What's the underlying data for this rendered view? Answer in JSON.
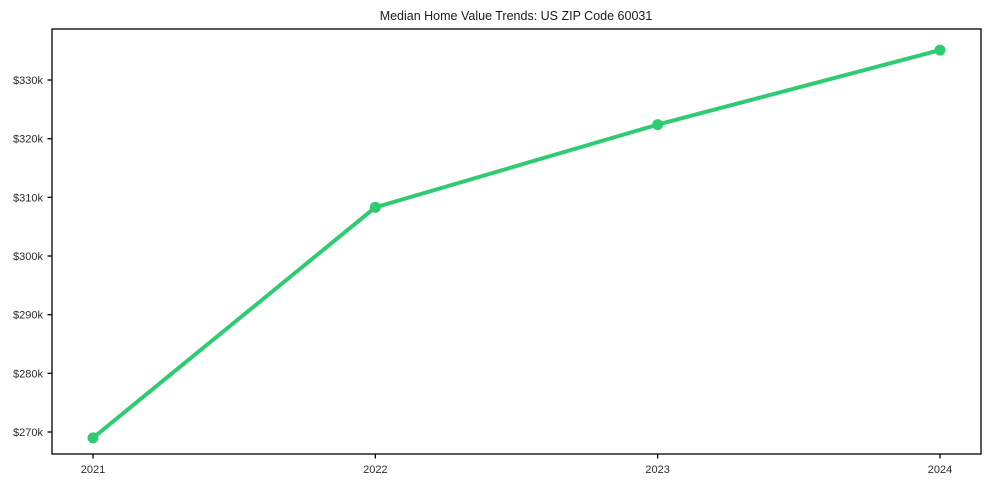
{
  "chart": {
    "title": "Median Home Value Trends: US ZIP Code 60031"
  },
  "chart_data": {
    "type": "line",
    "title": "Median Home Value Trends: US ZIP Code 60031",
    "xlabel": "",
    "ylabel": "",
    "x_labels": [
      "2021",
      "2022",
      "2023",
      "2024"
    ],
    "x": [
      2021,
      2022,
      2023,
      2024
    ],
    "series": [
      {
        "name": "Median Home Value",
        "values": [
          269000,
          308300,
          322400,
          335100
        ],
        "color": "#2ecc71"
      }
    ],
    "y_ticks": [
      {
        "value": 270000,
        "label": "$270k"
      },
      {
        "value": 280000,
        "label": "$280k"
      },
      {
        "value": 290000,
        "label": "$290k"
      },
      {
        "value": 300000,
        "label": "$300k"
      },
      {
        "value": 310000,
        "label": "$310k"
      },
      {
        "value": 320000,
        "label": "$320k"
      },
      {
        "value": 330000,
        "label": "$330k"
      }
    ],
    "ylim": [
      266250,
      338700
    ],
    "grid": false,
    "legend": "none",
    "marker": "circle",
    "marker_radius": 5.5,
    "line_width": 4,
    "frame_color": "#000000",
    "tick_color": "#000000"
  }
}
